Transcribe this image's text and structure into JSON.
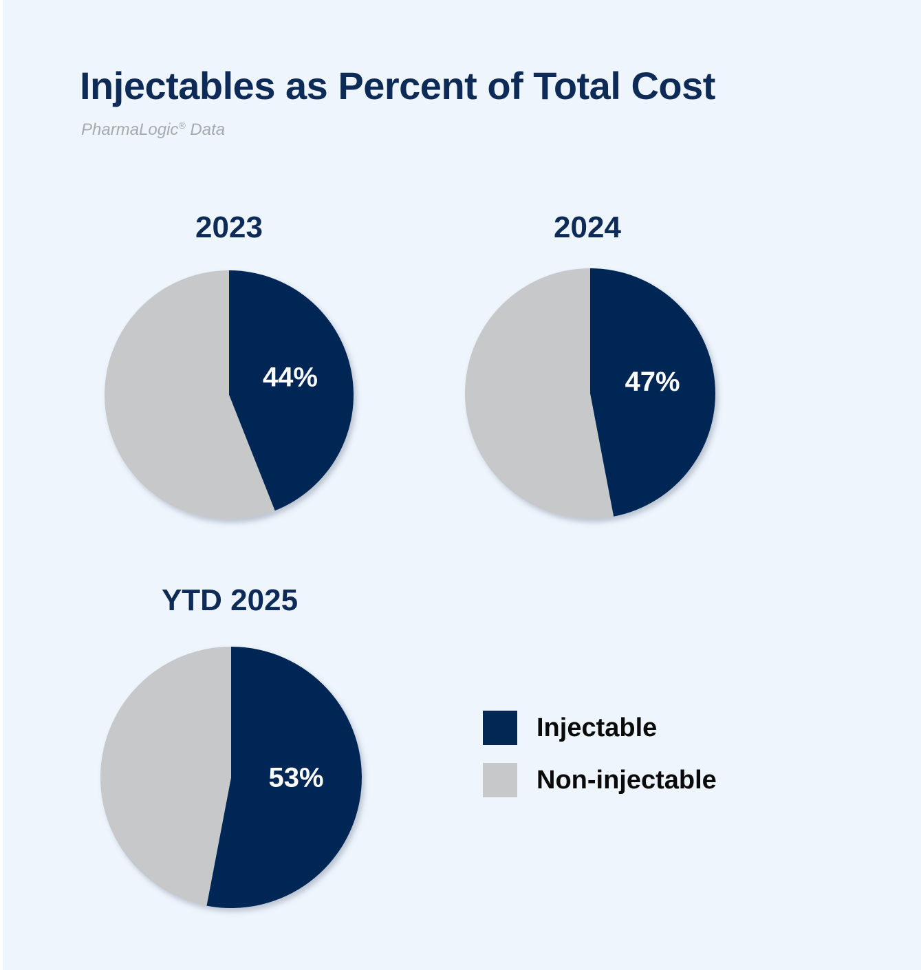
{
  "header": {
    "title": "Injectables as Percent of Total Cost",
    "subtitle_main": "PharmaLogic",
    "subtitle_mark": "®",
    "subtitle_tail": " Data"
  },
  "colors": {
    "background": "#eef5fd",
    "injectable": "#012855",
    "non_injectable": "#c7c8ca",
    "heading": "#0d2b56"
  },
  "chart_data": [
    {
      "type": "pie",
      "title": "2023",
      "labels": [
        "Injectable",
        "Non-injectable"
      ],
      "values": [
        44,
        56
      ],
      "data_labels": [
        "44%",
        ""
      ]
    },
    {
      "type": "pie",
      "title": "2024",
      "labels": [
        "Injectable",
        "Non-injectable"
      ],
      "values": [
        47,
        53
      ],
      "data_labels": [
        "47%",
        ""
      ]
    },
    {
      "type": "pie",
      "title": "YTD 2025",
      "labels": [
        "Injectable",
        "Non-injectable"
      ],
      "values": [
        53,
        47
      ],
      "data_labels": [
        "53%",
        ""
      ]
    }
  ],
  "legend": {
    "placement": "right",
    "items": [
      {
        "label": "Injectable",
        "color": "#012855"
      },
      {
        "label": "Non-injectable",
        "color": "#c7c8ca"
      }
    ]
  }
}
